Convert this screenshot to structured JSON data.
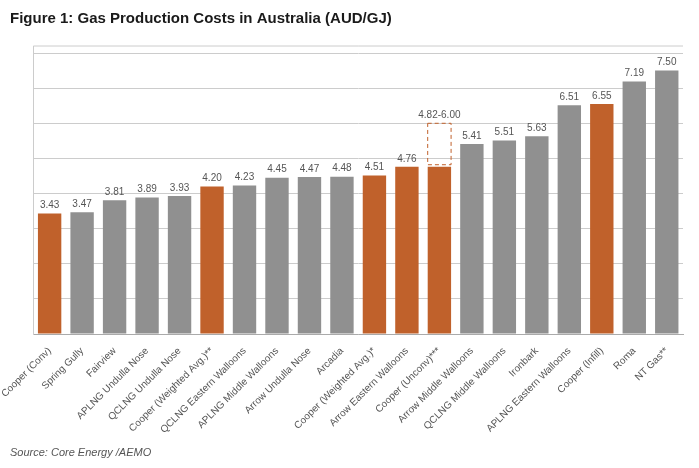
{
  "chart_data": {
    "type": "bar",
    "title": "Figure 1: Gas Production Costs in Australia (AUD/GJ)",
    "annotations": [
      "Source: Core Energy /AEMO"
    ],
    "categories": [
      "Cooper (Conv)",
      "Spring Gully",
      "Fairview",
      "APLNG Undulla Nose",
      "QCLNG Undulla Nose",
      "Cooper (Weighted Avg.)**",
      "QCLNG Eastern Walloons",
      "APLNG Middle Walloons",
      "Arrow Undulla Nose",
      "Arcadia",
      "Cooper (Weighted Avg.)*",
      "Arrow Eastern Walloons",
      "Cooper (Unconv)***",
      "Arrow Middle Walloons",
      "QCLNG Middle Walloons",
      "Ironbark",
      "APLNG Eastern Walloons",
      "Cooper (Infill)",
      "Roma",
      "NT Gas**"
    ],
    "values": [
      3.43,
      3.47,
      3.81,
      3.89,
      3.93,
      4.2,
      4.23,
      4.45,
      4.47,
      4.48,
      4.51,
      4.76,
      4.76,
      5.41,
      5.51,
      5.63,
      6.51,
      6.55,
      7.19,
      7.5
    ],
    "value_labels": [
      "3.43",
      "3.47",
      "3.81",
      "3.89",
      "3.93",
      "4.20",
      "4.23",
      "4.45",
      "4.47",
      "4.48",
      "4.51",
      "4.76",
      null,
      "5.41",
      "5.51",
      "5.63",
      "6.51",
      "6.55",
      "7.19",
      "7.50"
    ],
    "colors": [
      "#c0612b",
      "#909090",
      "#909090",
      "#909090",
      "#909090",
      "#c0612b",
      "#909090",
      "#909090",
      "#909090",
      "#909090",
      "#c0612b",
      "#c0612b",
      "#c0612b",
      "#909090",
      "#909090",
      "#909090",
      "#909090",
      "#c0612b",
      "#909090",
      "#909090"
    ],
    "range": {
      "category": "Cooper (Unconv)***",
      "low": 4.82,
      "high": 6.0,
      "label": "4.82-6.00",
      "color": "#c0612b",
      "line_style": "dashed"
    },
    "ylim": [
      0,
      8.2
    ],
    "yticks": [
      0,
      1,
      2,
      3,
      4,
      5,
      6,
      7,
      8
    ],
    "grid": true,
    "data_labels": true,
    "tick_labels": "x"
  }
}
